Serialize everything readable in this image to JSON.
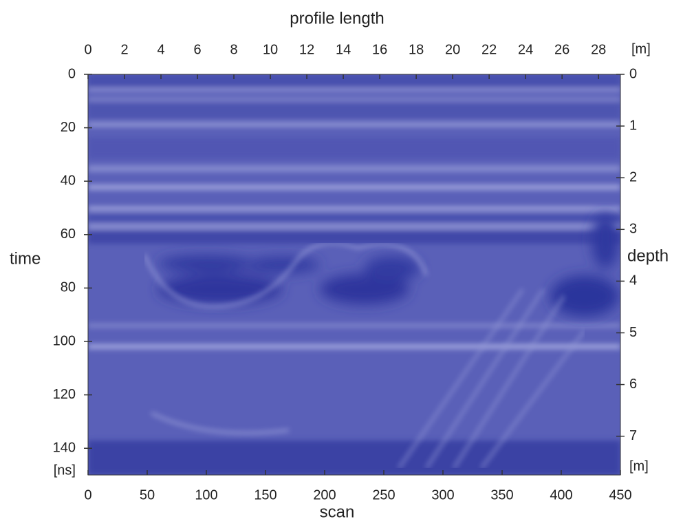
{
  "chart_data": {
    "type": "radargram",
    "x_title": "scan",
    "x2_title": "profile length",
    "y_title": "time",
    "y2_title": "depth",
    "x2_unit": "[m]",
    "y_unit": "[ns]",
    "y2_unit": "[m]",
    "xlim": [
      0,
      450
    ],
    "xticks": [
      0,
      50,
      100,
      150,
      200,
      250,
      300,
      350,
      400,
      450
    ],
    "x2lim": [
      0,
      29.2
    ],
    "x2ticks": [
      0,
      2,
      4,
      6,
      8,
      10,
      12,
      14,
      16,
      18,
      20,
      22,
      24,
      26,
      28
    ],
    "ylim": [
      0,
      150
    ],
    "yticks": [
      0,
      20,
      40,
      60,
      80,
      100,
      120,
      140
    ],
    "y2lim": [
      0,
      7.75
    ],
    "y2ticks": [
      0,
      1,
      2,
      3,
      4,
      5,
      6,
      7
    ]
  }
}
